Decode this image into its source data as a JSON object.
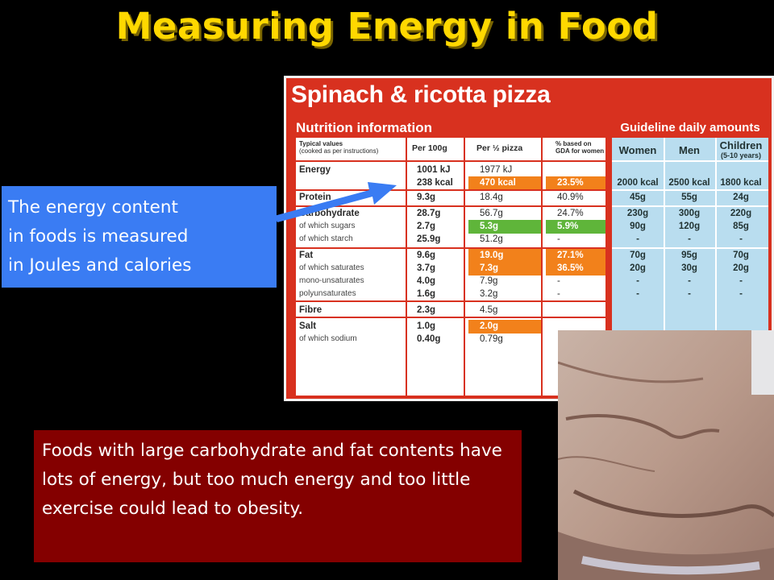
{
  "title": "Measuring Energy in Food",
  "label": {
    "product": "Spinach & ricotta pizza",
    "nutrition_header": "Nutrition information",
    "gda_header": "Guideline daily amounts",
    "col_headers": {
      "typical": [
        "Typical values",
        "(cooked as per instructions)"
      ],
      "per100": "Per 100g",
      "perhalf": "Per ½ pizza",
      "gda_pct": [
        "% based on",
        "GDA for women"
      ]
    },
    "rows": [
      {
        "name": "Energy",
        "sub": false,
        "per100": "1001 kJ",
        "perhalf": "1977 kJ",
        "pct": ""
      },
      {
        "name": "",
        "sub": false,
        "per100": "238 kcal",
        "perhalf": "470 kcal",
        "pct": "23.5%",
        "hl": "orange"
      },
      {
        "name": "Protein",
        "sub": false,
        "per100": "9.3g",
        "perhalf": "18.4g",
        "pct": "40.9%"
      },
      {
        "name": "Carbohydrate",
        "sub": false,
        "per100": "28.7g",
        "perhalf": "56.7g",
        "pct": "24.7%"
      },
      {
        "name": "of which sugars",
        "sub": true,
        "per100": "2.7g",
        "perhalf": "5.3g",
        "pct": "5.9%",
        "hl": "green"
      },
      {
        "name": "of which starch",
        "sub": true,
        "per100": "25.9g",
        "perhalf": "51.2g",
        "pct": "-"
      },
      {
        "name": "Fat",
        "sub": false,
        "per100": "9.6g",
        "perhalf": "19.0g",
        "pct": "27.1%",
        "hl": "orange"
      },
      {
        "name": "of which saturates",
        "sub": true,
        "per100": "3.7g",
        "perhalf": "7.3g",
        "pct": "36.5%",
        "hl": "orange"
      },
      {
        "name": "mono-unsaturates",
        "sub": true,
        "per100": "4.0g",
        "perhalf": "7.9g",
        "pct": "-"
      },
      {
        "name": "polyunsaturates",
        "sub": true,
        "per100": "1.6g",
        "perhalf": "3.2g",
        "pct": "-"
      },
      {
        "name": "Fibre",
        "sub": false,
        "per100": "2.3g",
        "perhalf": "4.5g",
        "pct": ""
      },
      {
        "name": "Salt",
        "sub": false,
        "per100": "1.0g",
        "perhalf": "2.0g",
        "pct": "",
        "hl": "orange"
      },
      {
        "name": "of which sodium",
        "sub": true,
        "per100": "0.40g",
        "perhalf": "0.79g",
        "pct": ""
      }
    ],
    "gda_cols": [
      {
        "head": "Women",
        "sub": ""
      },
      {
        "head": "Men",
        "sub": ""
      },
      {
        "head": "Children",
        "sub": "(5-10 years)"
      }
    ],
    "gda_rows": [
      [
        "2000 kcal",
        "2500 kcal",
        "1800 kcal"
      ],
      [
        "45g",
        "55g",
        "24g"
      ],
      [
        "230g",
        "300g",
        "220g"
      ],
      [
        "90g",
        "120g",
        "85g"
      ],
      [
        "-",
        "-",
        "-"
      ],
      [
        "70g",
        "95g",
        "70g"
      ],
      [
        "20g",
        "30g",
        "20g"
      ],
      [
        "-",
        "-",
        "-"
      ],
      [
        "-",
        "-",
        "-"
      ]
    ]
  },
  "callout_energy": [
    "The energy content",
    "in foods is measured",
    "in Joules and calories"
  ],
  "callout_obesity": "Foods with large carbohydrate and fat contents have lots of energy, but too much energy and too little exercise could lead to obesity.",
  "colors": {
    "title": "#ffd800",
    "label_red": "#d8311f",
    "highlight_orange": "#f2811b",
    "highlight_green": "#5fb53a",
    "gda_blue": "#b9ddef",
    "callout_blue": "#3a7cf3",
    "callout_red": "#840000"
  }
}
